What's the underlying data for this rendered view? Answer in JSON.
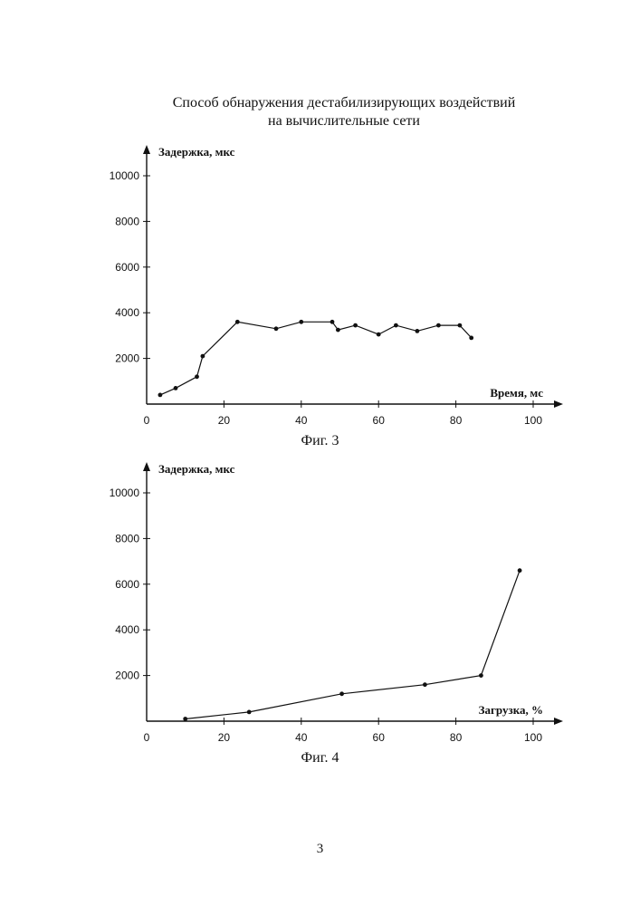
{
  "document": {
    "title_line1": "Способ обнаружения дестабилизирующих воздействий",
    "title_line2": "на вычислительные сети",
    "page_number": "3"
  },
  "chart_data": [
    {
      "type": "line",
      "caption": "Фиг. 3",
      "ylabel": "Задержка, мкс",
      "xlabel": "Время, мс",
      "xlim": [
        0,
        100
      ],
      "ylim": [
        0,
        11000
      ],
      "x_ticks": [
        0,
        20,
        40,
        60,
        80,
        100
      ],
      "y_ticks": [
        2000,
        4000,
        6000,
        8000,
        10000
      ],
      "grid": false,
      "series": [
        {
          "x": [
            3.5,
            7.5,
            13,
            14.5,
            23.5,
            33.5,
            40,
            48,
            49.5,
            54,
            60,
            64.5,
            70,
            75.5,
            81,
            84
          ],
          "y": [
            400,
            700,
            1200,
            2100,
            3600,
            3300,
            3600,
            3600,
            3250,
            3450,
            3050,
            3450,
            3200,
            3450,
            3450,
            2900
          ]
        }
      ]
    },
    {
      "type": "line",
      "caption": "Фиг. 4",
      "ylabel": "Задержка, мкс",
      "xlabel": "Загрузка, %",
      "xlim": [
        0,
        100
      ],
      "ylim": [
        0,
        11000
      ],
      "x_ticks": [
        0,
        20,
        40,
        60,
        80,
        100
      ],
      "y_ticks": [
        2000,
        4000,
        6000,
        8000,
        10000
      ],
      "grid": false,
      "series": [
        {
          "x": [
            10,
            26.5,
            50.5,
            72,
            86.5,
            96.5
          ],
          "y": [
            100,
            400,
            1200,
            1600,
            2000,
            6600
          ]
        }
      ]
    }
  ]
}
